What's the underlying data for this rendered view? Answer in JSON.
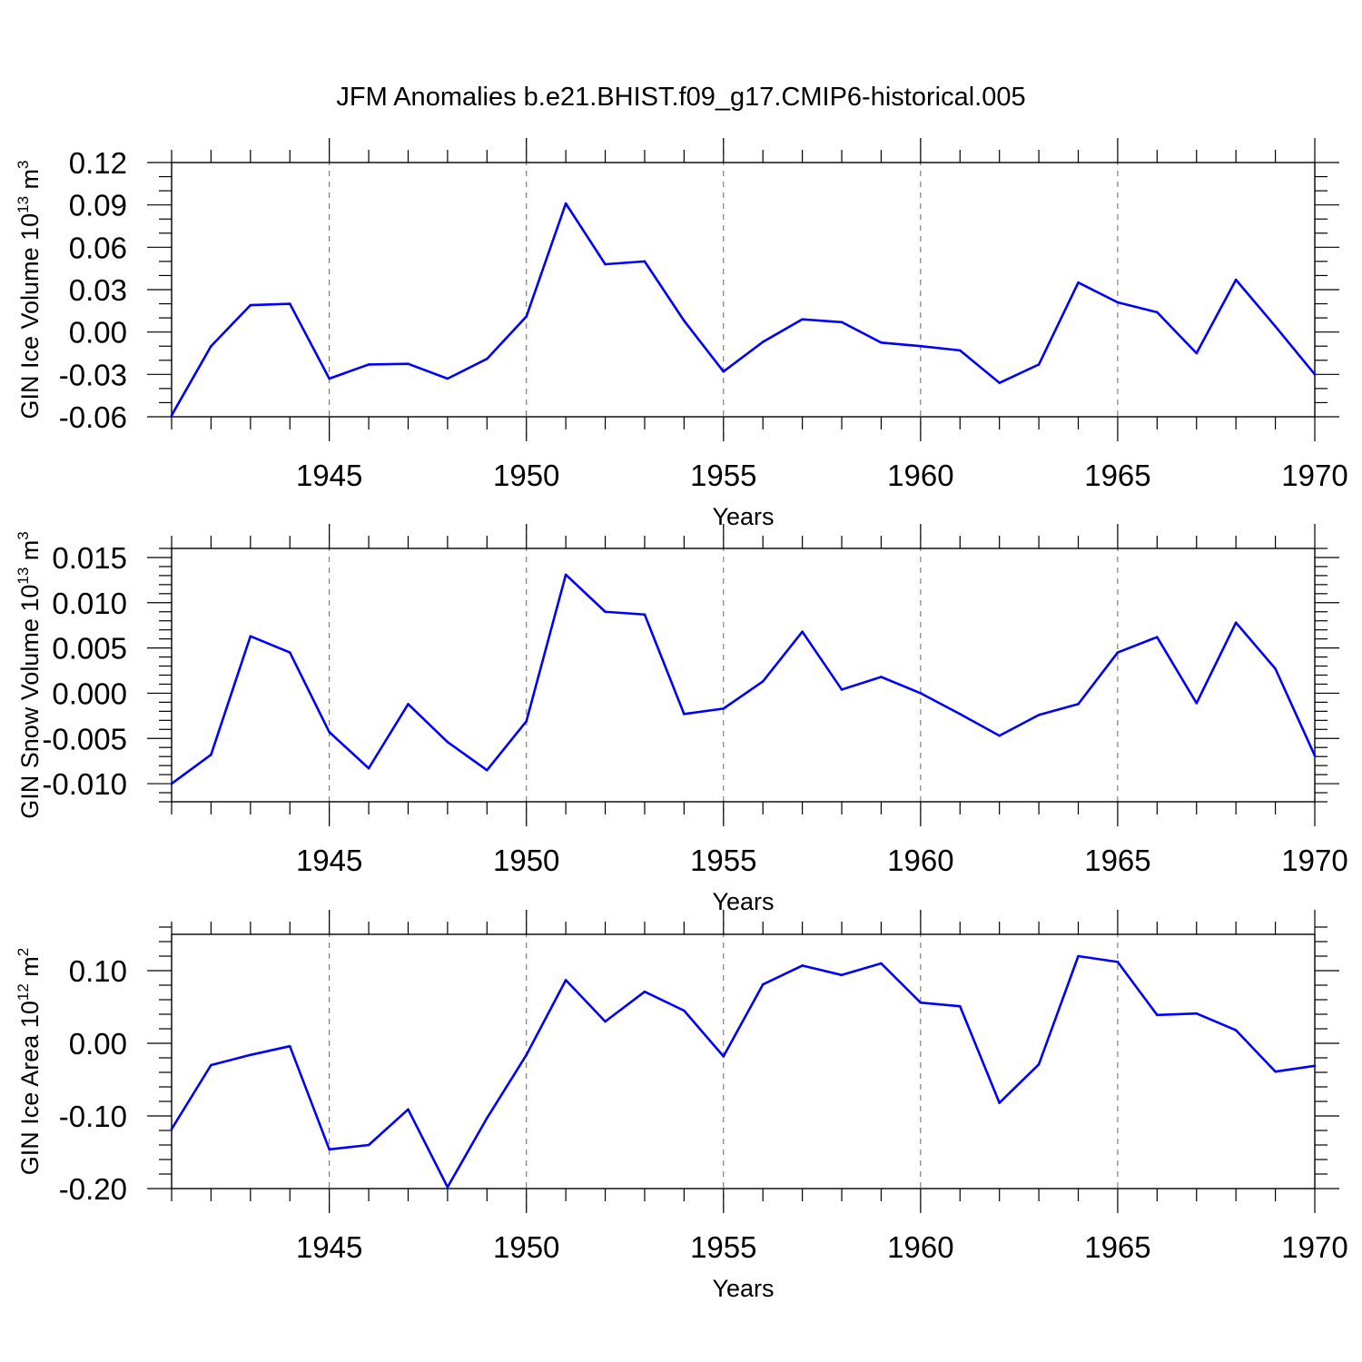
{
  "title": "JFM Anomalies b.e21.BHIST.f09_g17.CMIP6-historical.005",
  "colors": {
    "line": "#0000ff",
    "axis": "#000000",
    "grid": "#666666"
  },
  "chart_data": [
    {
      "type": "line",
      "name": "ice-volume",
      "ylabel_main": "GIN Ice Volume 10",
      "ylabel_exp": "13",
      "ylabel_unit": " m",
      "ylabel_unit_exp": "3",
      "xlabel": "Years",
      "xlim": [
        1941,
        1970
      ],
      "ylim": [
        -0.06,
        0.12
      ],
      "x_ticks": [
        1945,
        1950,
        1955,
        1960,
        1965,
        1970
      ],
      "x_tick_labels": [
        "1945",
        "1950",
        "1955",
        "1960",
        "1965",
        "1970"
      ],
      "y_ticks": [
        -0.06,
        -0.03,
        0.0,
        0.03,
        0.06,
        0.09,
        0.12
      ],
      "y_tick_labels": [
        "-0.06",
        "-0.03",
        "0.00",
        "0.03",
        "0.06",
        "0.09",
        "0.12"
      ],
      "y_minor_step": 0.01,
      "grid": "vertical-dashed-at-major-x-ticks",
      "x": [
        1941,
        1942,
        1943,
        1944,
        1945,
        1946,
        1947,
        1948,
        1949,
        1950,
        1951,
        1952,
        1953,
        1954,
        1955,
        1956,
        1957,
        1958,
        1959,
        1960,
        1961,
        1962,
        1963,
        1964,
        1965,
        1966,
        1967,
        1968,
        1969,
        1970
      ],
      "values": [
        -0.059,
        -0.01,
        0.019,
        0.02,
        -0.033,
        -0.023,
        -0.0225,
        -0.033,
        -0.019,
        0.011,
        0.091,
        0.048,
        0.05,
        0.008,
        -0.028,
        -0.007,
        0.009,
        0.007,
        -0.0075,
        -0.01,
        -0.013,
        -0.036,
        -0.023,
        0.035,
        0.021,
        0.014,
        -0.015,
        0.037,
        0.004,
        -0.03
      ],
      "series_name": "GIN Ice Volume"
    },
    {
      "type": "line",
      "name": "snow-volume",
      "ylabel_main": "GIN Snow Volume 10",
      "ylabel_exp": "13",
      "ylabel_unit": " m",
      "ylabel_unit_exp": "3",
      "xlabel": "Years",
      "xlim": [
        1941,
        1970
      ],
      "ylim": [
        -0.012,
        0.016
      ],
      "x_ticks": [
        1945,
        1950,
        1955,
        1960,
        1965,
        1970
      ],
      "x_tick_labels": [
        "1945",
        "1950",
        "1955",
        "1960",
        "1965",
        "1970"
      ],
      "y_ticks": [
        -0.01,
        -0.005,
        0.0,
        0.005,
        0.01,
        0.015
      ],
      "y_tick_labels": [
        "-0.010",
        "-0.005",
        "0.000",
        "0.005",
        "0.010",
        "0.015"
      ],
      "y_minor_step": 0.001,
      "grid": "vertical-dashed-at-major-x-ticks",
      "x": [
        1941,
        1942,
        1943,
        1944,
        1945,
        1946,
        1947,
        1948,
        1949,
        1950,
        1951,
        1952,
        1953,
        1954,
        1955,
        1956,
        1957,
        1958,
        1959,
        1960,
        1961,
        1962,
        1963,
        1964,
        1965,
        1966,
        1967,
        1968,
        1969,
        1970
      ],
      "values": [
        -0.01,
        -0.0068,
        0.0063,
        0.0045,
        -0.0043,
        -0.0083,
        -0.0012,
        -0.0054,
        -0.0085,
        -0.0031,
        0.0131,
        0.009,
        0.0087,
        -0.0023,
        -0.0017,
        0.0013,
        0.0068,
        0.0004,
        0.0018,
        0.0,
        -0.0023,
        -0.0047,
        -0.0024,
        -0.0012,
        0.0045,
        0.0062,
        -0.0011,
        0.0078,
        0.0027,
        -0.0069
      ],
      "series_name": "GIN Snow Volume"
    },
    {
      "type": "line",
      "name": "ice-area",
      "ylabel_main": "GIN Ice Area 10",
      "ylabel_exp": "12",
      "ylabel_unit": " m",
      "ylabel_unit_exp": "2",
      "xlabel": "Years",
      "xlim": [
        1941,
        1970
      ],
      "ylim": [
        -0.2,
        0.15
      ],
      "x_ticks": [
        1945,
        1950,
        1955,
        1960,
        1965,
        1970
      ],
      "x_tick_labels": [
        "1945",
        "1950",
        "1955",
        "1960",
        "1965",
        "1970"
      ],
      "y_ticks": [
        -0.2,
        -0.1,
        0.0,
        0.1
      ],
      "y_tick_labels": [
        "-0.20",
        "-0.10",
        "0.00",
        "0.10"
      ],
      "y_minor_step": 0.02,
      "grid": "vertical-dashed-at-major-x-ticks",
      "x": [
        1941,
        1942,
        1943,
        1944,
        1945,
        1946,
        1947,
        1948,
        1949,
        1950,
        1951,
        1952,
        1953,
        1954,
        1955,
        1956,
        1957,
        1958,
        1959,
        1960,
        1961,
        1962,
        1963,
        1964,
        1965,
        1966,
        1967,
        1968,
        1969,
        1970
      ],
      "values": [
        -0.118,
        -0.03,
        -0.016,
        -0.004,
        -0.146,
        -0.14,
        -0.091,
        -0.198,
        -0.103,
        -0.016,
        0.087,
        0.03,
        0.071,
        0.045,
        -0.018,
        0.081,
        0.107,
        0.094,
        0.11,
        0.056,
        0.051,
        -0.082,
        -0.029,
        0.12,
        0.112,
        0.039,
        0.041,
        0.018,
        -0.039,
        -0.031
      ],
      "series_name": "GIN Ice Area"
    }
  ]
}
